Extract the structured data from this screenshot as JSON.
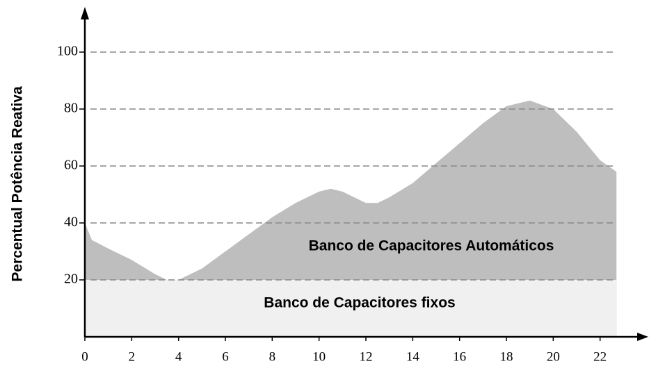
{
  "chart_data": {
    "type": "area",
    "y_label": "Percentual Potência Reativa",
    "xlim": [
      0,
      24
    ],
    "ylim": [
      0,
      110
    ],
    "xticks": [
      0,
      2,
      4,
      6,
      8,
      10,
      12,
      14,
      16,
      18,
      20,
      22
    ],
    "yticks": [
      20,
      40,
      60,
      80,
      100
    ],
    "grid": true,
    "series": [
      {
        "name": "Banco de Capacitores Automáticos",
        "color": "#bebebe",
        "x": [
          0,
          0.3,
          1,
          2,
          3,
          3.5,
          4,
          5,
          6,
          7,
          8,
          9,
          10,
          10.5,
          11,
          12,
          12.5,
          13,
          14,
          15,
          16,
          17,
          18,
          19,
          20,
          21,
          22,
          22.7
        ],
        "values": [
          40,
          34,
          31,
          27,
          22,
          20,
          20,
          24,
          30,
          36,
          42,
          47,
          51,
          52,
          51,
          47,
          47,
          49,
          54,
          61,
          68,
          75,
          81,
          83,
          80,
          72,
          62,
          58
        ]
      },
      {
        "name": "Banco de Capacitores fixos",
        "color": "#f0f0f0",
        "x": [
          0,
          22.7
        ],
        "values": [
          20,
          20
        ]
      }
    ]
  }
}
